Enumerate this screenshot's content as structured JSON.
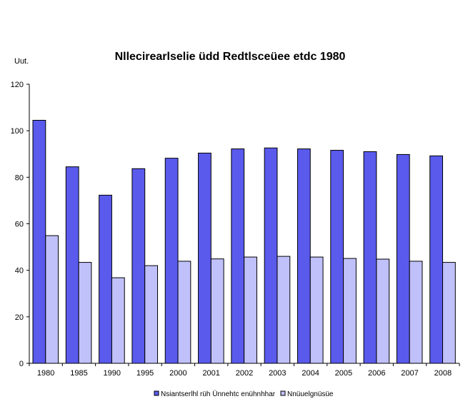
{
  "chart_data": {
    "type": "bar",
    "title": "Nllecirearlselie üdd Redtlsceüee etdc 1980",
    "ylabel": "Uut.",
    "xlabel": "",
    "ylim": [
      0,
      120
    ],
    "yticks": [
      0,
      20,
      40,
      60,
      80,
      100,
      120
    ],
    "grid": false,
    "legend_position": "bottom",
    "categories": [
      "1980",
      "1985",
      "1990",
      "1995",
      "2000",
      "2001",
      "2002",
      "2003",
      "2004",
      "2005",
      "2006",
      "2007",
      "2008"
    ],
    "series": [
      {
        "name": "Nsiantserlhl rüh Ünnehtc enühnhhar",
        "color": "#5a5aed",
        "values": [
          104.5,
          84.5,
          72.3,
          83.7,
          88.2,
          90.4,
          92.2,
          92.6,
          92.2,
          91.6,
          91.0,
          89.8,
          89.2
        ]
      },
      {
        "name": "Nnüuelgnüsüe",
        "color": "#c0c0fa",
        "values": [
          54.9,
          43.4,
          36.8,
          42.0,
          43.9,
          44.9,
          45.7,
          46.0,
          45.7,
          45.1,
          44.8,
          43.9,
          43.4
        ]
      }
    ]
  }
}
